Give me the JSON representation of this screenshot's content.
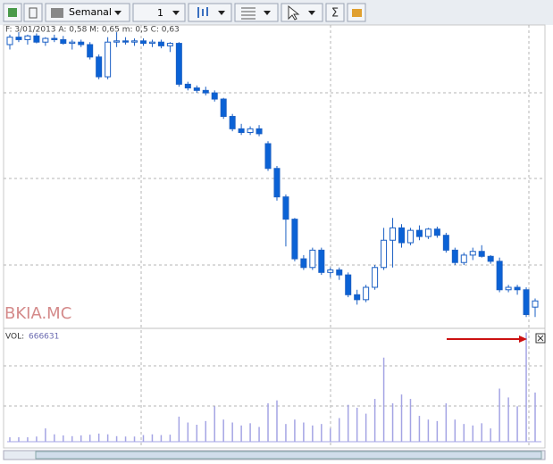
{
  "toolbar": {
    "period": "Semanal",
    "count": "1"
  },
  "chart_data": {
    "type": "candlestick",
    "symbol": "BKIA.MC",
    "info": "F: 3/01/2013 A: 0,58 M: 0,65 m: 0,5 C: 0,63",
    "ylim": [
      0.43,
      2.88
    ],
    "up_color": "#ffffff",
    "down_color": "#0a62d6",
    "edge_color": "#1a5fc4",
    "candles": [
      {
        "o": 2.7,
        "h": 2.78,
        "l": 2.66,
        "c": 2.76
      },
      {
        "o": 2.76,
        "h": 2.8,
        "l": 2.72,
        "c": 2.74
      },
      {
        "o": 2.74,
        "h": 2.78,
        "l": 2.7,
        "c": 2.77
      },
      {
        "o": 2.77,
        "h": 2.79,
        "l": 2.71,
        "c": 2.72
      },
      {
        "o": 2.72,
        "h": 2.76,
        "l": 2.69,
        "c": 2.75
      },
      {
        "o": 2.75,
        "h": 2.78,
        "l": 2.72,
        "c": 2.74
      },
      {
        "o": 2.74,
        "h": 2.77,
        "l": 2.7,
        "c": 2.71
      },
      {
        "o": 2.71,
        "h": 2.74,
        "l": 2.66,
        "c": 2.72
      },
      {
        "o": 2.72,
        "h": 2.74,
        "l": 2.68,
        "c": 2.7
      },
      {
        "o": 2.7,
        "h": 2.72,
        "l": 2.58,
        "c": 2.6
      },
      {
        "o": 2.6,
        "h": 2.62,
        "l": 2.42,
        "c": 2.44
      },
      {
        "o": 2.44,
        "h": 2.76,
        "l": 2.42,
        "c": 2.72
      },
      {
        "o": 2.72,
        "h": 2.8,
        "l": 2.68,
        "c": 2.73
      },
      {
        "o": 2.73,
        "h": 2.76,
        "l": 2.7,
        "c": 2.72
      },
      {
        "o": 2.72,
        "h": 2.75,
        "l": 2.69,
        "c": 2.73
      },
      {
        "o": 2.73,
        "h": 2.75,
        "l": 2.69,
        "c": 2.71
      },
      {
        "o": 2.71,
        "h": 2.74,
        "l": 2.68,
        "c": 2.72
      },
      {
        "o": 2.72,
        "h": 2.74,
        "l": 2.67,
        "c": 2.69
      },
      {
        "o": 2.69,
        "h": 2.72,
        "l": 2.64,
        "c": 2.71
      },
      {
        "o": 2.71,
        "h": 2.72,
        "l": 2.36,
        "c": 2.38
      },
      {
        "o": 2.38,
        "h": 2.4,
        "l": 2.33,
        "c": 2.35
      },
      {
        "o": 2.35,
        "h": 2.37,
        "l": 2.31,
        "c": 2.33
      },
      {
        "o": 2.33,
        "h": 2.36,
        "l": 2.29,
        "c": 2.31
      },
      {
        "o": 2.31,
        "h": 2.33,
        "l": 2.24,
        "c": 2.26
      },
      {
        "o": 2.26,
        "h": 2.27,
        "l": 2.1,
        "c": 2.12
      },
      {
        "o": 2.12,
        "h": 2.14,
        "l": 2.0,
        "c": 2.02
      },
      {
        "o": 2.02,
        "h": 2.06,
        "l": 1.97,
        "c": 1.99
      },
      {
        "o": 1.99,
        "h": 2.04,
        "l": 1.97,
        "c": 2.02
      },
      {
        "o": 2.02,
        "h": 2.05,
        "l": 1.96,
        "c": 1.98
      },
      {
        "o": 1.9,
        "h": 1.92,
        "l": 1.68,
        "c": 1.7
      },
      {
        "o": 1.7,
        "h": 1.72,
        "l": 1.44,
        "c": 1.47
      },
      {
        "o": 1.47,
        "h": 1.49,
        "l": 1.07,
        "c": 1.29
      },
      {
        "o": 1.29,
        "h": 1.3,
        "l": 0.95,
        "c": 0.97
      },
      {
        "o": 0.97,
        "h": 1.0,
        "l": 0.88,
        "c": 0.9
      },
      {
        "o": 0.9,
        "h": 1.06,
        "l": 0.88,
        "c": 1.04
      },
      {
        "o": 1.04,
        "h": 1.06,
        "l": 0.84,
        "c": 0.86
      },
      {
        "o": 0.86,
        "h": 0.9,
        "l": 0.82,
        "c": 0.88
      },
      {
        "o": 0.88,
        "h": 0.9,
        "l": 0.8,
        "c": 0.84
      },
      {
        "o": 0.84,
        "h": 0.86,
        "l": 0.66,
        "c": 0.68
      },
      {
        "o": 0.68,
        "h": 0.72,
        "l": 0.6,
        "c": 0.64
      },
      {
        "o": 0.64,
        "h": 0.76,
        "l": 0.62,
        "c": 0.74
      },
      {
        "o": 0.74,
        "h": 0.92,
        "l": 0.72,
        "c": 0.9
      },
      {
        "o": 0.9,
        "h": 1.22,
        "l": 0.88,
        "c": 1.12
      },
      {
        "o": 1.12,
        "h": 1.3,
        "l": 0.9,
        "c": 1.22
      },
      {
        "o": 1.22,
        "h": 1.25,
        "l": 1.06,
        "c": 1.1
      },
      {
        "o": 1.1,
        "h": 1.22,
        "l": 1.08,
        "c": 1.2
      },
      {
        "o": 1.2,
        "h": 1.24,
        "l": 1.12,
        "c": 1.15
      },
      {
        "o": 1.15,
        "h": 1.22,
        "l": 1.13,
        "c": 1.21
      },
      {
        "o": 1.21,
        "h": 1.23,
        "l": 1.14,
        "c": 1.16
      },
      {
        "o": 1.16,
        "h": 1.18,
        "l": 1.02,
        "c": 1.04
      },
      {
        "o": 1.04,
        "h": 1.06,
        "l": 0.92,
        "c": 0.94
      },
      {
        "o": 0.94,
        "h": 1.02,
        "l": 0.92,
        "c": 1.0
      },
      {
        "o": 1.0,
        "h": 1.06,
        "l": 0.96,
        "c": 1.03
      },
      {
        "o": 1.03,
        "h": 1.08,
        "l": 0.98,
        "c": 0.99
      },
      {
        "o": 0.99,
        "h": 1.0,
        "l": 0.93,
        "c": 0.95
      },
      {
        "o": 0.95,
        "h": 0.98,
        "l": 0.7,
        "c": 0.72
      },
      {
        "o": 0.72,
        "h": 0.76,
        "l": 0.7,
        "c": 0.74
      },
      {
        "o": 0.74,
        "h": 0.76,
        "l": 0.68,
        "c": 0.72
      },
      {
        "o": 0.72,
        "h": 0.74,
        "l": 0.5,
        "c": 0.52
      },
      {
        "o": 0.58,
        "h": 0.65,
        "l": 0.5,
        "c": 0.63
      }
    ],
    "volume": {
      "label": "VOL:",
      "ylim": [
        0,
        1500000
      ],
      "color": "#a4a4e4",
      "values": [
        60000,
        60000,
        60000,
        70000,
        180000,
        100000,
        85000,
        75000,
        85000,
        95000,
        110000,
        100000,
        75000,
        70000,
        70000,
        90000,
        100000,
        90000,
        95000,
        340000,
        260000,
        230000,
        280000,
        480000,
        300000,
        260000,
        220000,
        250000,
        200000,
        520000,
        560000,
        240000,
        300000,
        260000,
        220000,
        240000,
        180000,
        320000,
        500000,
        460000,
        380000,
        580000,
        1140000,
        520000,
        640000,
        580000,
        350000,
        300000,
        280000,
        520000,
        300000,
        240000,
        220000,
        250000,
        180000,
        720000,
        600000,
        480000,
        1480000,
        666631
      ]
    }
  }
}
